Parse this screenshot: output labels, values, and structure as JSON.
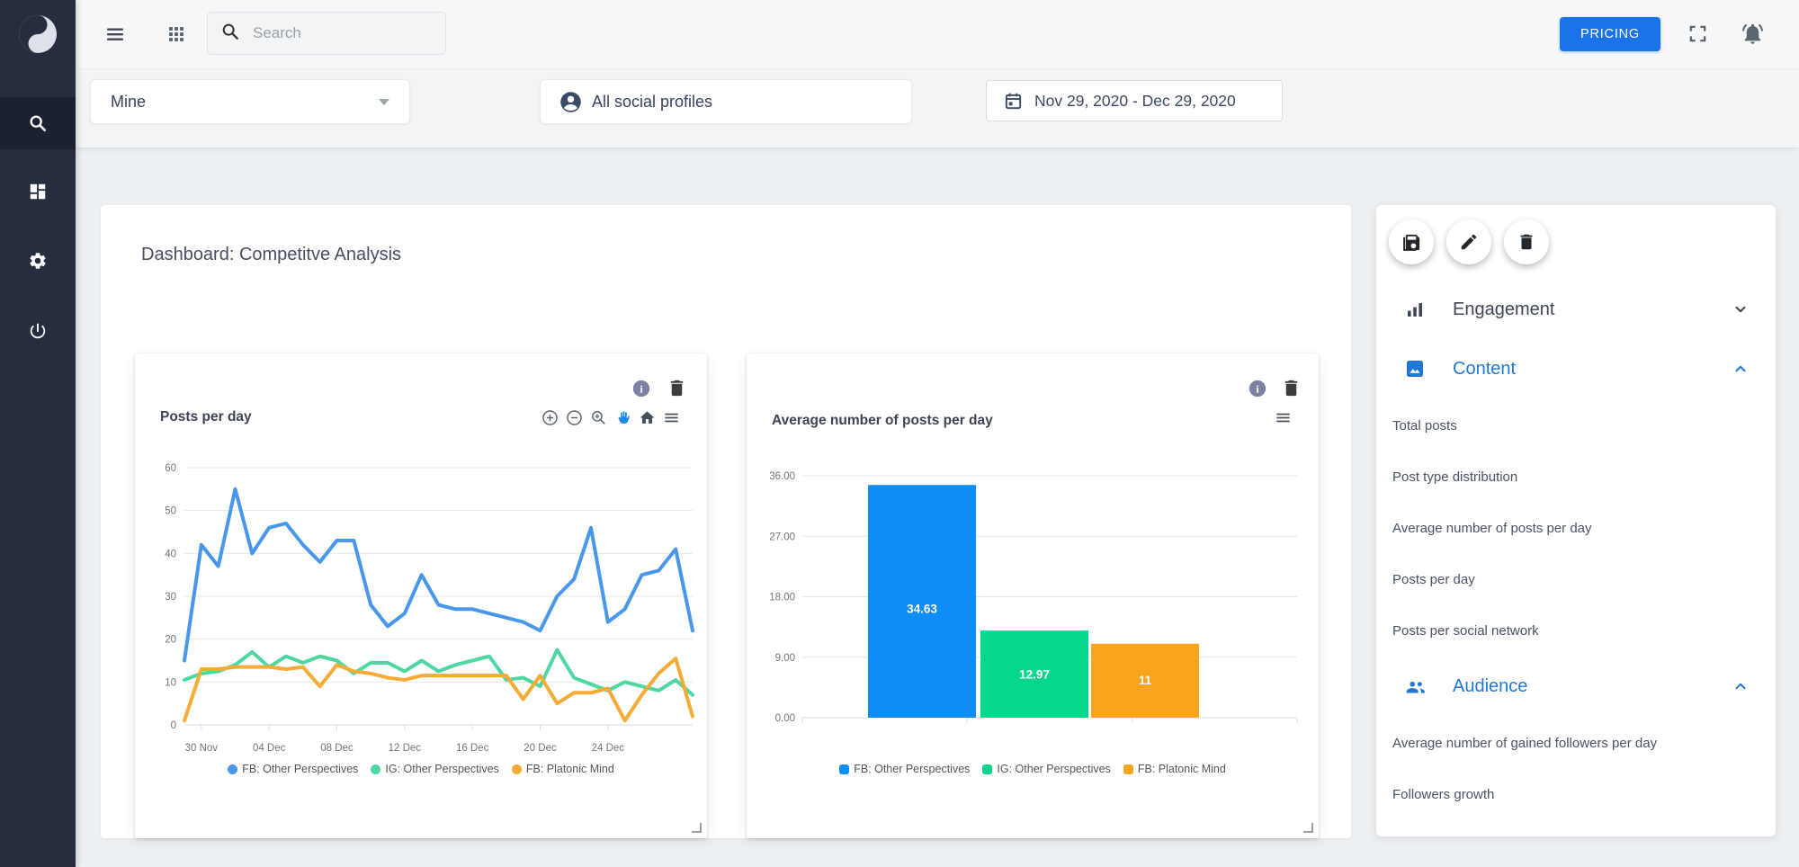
{
  "colors": {
    "accent_blue": "#1a73e8",
    "panel_link_blue": "#2078d4",
    "sidebar_bg": "#262d3e",
    "page_bg": "#edf0f3"
  },
  "sidebar": {
    "logo_icon": "yin-yang-logo",
    "nav_icons": [
      "search",
      "dashboard",
      "settings",
      "power"
    ],
    "active_item": "search"
  },
  "topbar": {
    "menu_icon": "hamburger",
    "apps_icon": "grid-dots",
    "search": {
      "placeholder": "Search"
    },
    "pricing_button_label": "PRICING",
    "fullscreen_icon": "fullscreen-brackets",
    "notifications_icon": "bell"
  },
  "filters": {
    "ownership": {
      "value": "Mine"
    },
    "profiles": {
      "value": "All social profiles",
      "icon": "account-circle"
    },
    "date_range": {
      "value": "Nov 29, 2020 - Dec 29, 2020",
      "icon": "calendar"
    }
  },
  "dashboard": {
    "title": "Dashboard: Competitve Analysis"
  },
  "charts": [
    {
      "title": "Posts per day",
      "header_icons": [
        "info",
        "delete"
      ],
      "toolbar_icons": [
        "zoom-in",
        "zoom-out",
        "selection-zoom",
        "pan-hand",
        "home",
        "menu"
      ],
      "chart_data": {
        "type": "line",
        "title": "Posts per day",
        "x_labels": [
          "30 Nov",
          "04 Dec",
          "08 Dec",
          "12 Dec",
          "16 Dec",
          "20 Dec",
          "24 Dec"
        ],
        "label_indices": [
          1,
          5,
          9,
          13,
          17,
          21,
          25
        ],
        "ylim": [
          0,
          60
        ],
        "yticks": [
          0,
          10,
          20,
          30,
          40,
          50,
          60
        ],
        "grid": true,
        "legend_position": "bottom",
        "series": [
          {
            "name": "FB: Other Perspectives",
            "color": "#4897EC",
            "values": [
              15,
              42,
              37,
              55,
              40,
              46,
              47,
              42,
              38,
              43,
              43,
              28,
              23,
              26,
              35,
              28,
              27,
              27,
              26,
              25,
              24,
              22,
              30,
              34,
              46,
              24,
              27,
              35,
              36,
              41,
              22
            ]
          },
          {
            "name": "IG: Other Perspectives",
            "color": "#4FD7A2",
            "values": [
              10.5,
              12,
              12.5,
              14,
              17,
              13.5,
              16,
              14.5,
              16,
              15,
              12,
              14.5,
              14.5,
              12.5,
              15,
              12.5,
              14,
              15,
              16,
              10.5,
              11,
              9,
              17.5,
              11,
              9.5,
              8,
              10,
              9,
              8,
              10.5,
              7
            ]
          },
          {
            "name": "FB: Platonic Mind",
            "color": "#F5AB35",
            "values": [
              1,
              13,
              13,
              13.5,
              13.5,
              13.5,
              13,
              13.5,
              9,
              14,
              12.5,
              12,
              11,
              10.5,
              11.5,
              11.5,
              11.5,
              11.5,
              11.5,
              11.5,
              6,
              11.5,
              5,
              7.5,
              7.5,
              8.5,
              1,
              7,
              12,
              15.5,
              2
            ]
          }
        ]
      }
    },
    {
      "title": "Average number of posts per day",
      "header_icons": [
        "info",
        "delete"
      ],
      "toolbar_icons": [
        "menu"
      ],
      "chart_data": {
        "type": "bar",
        "title": "Average number of posts per day",
        "categories": [
          "FB: Other Perspectives",
          "IG: Other Perspectives",
          "FB: Platonic Mind"
        ],
        "values": [
          34.63,
          12.97,
          11
        ],
        "display_values": [
          "34.63",
          "12.97",
          "11"
        ],
        "colors": [
          "#0E8DF9",
          "#06D78C",
          "#F8A41D"
        ],
        "ylim": [
          0,
          36
        ],
        "yticks": [
          0,
          9,
          18,
          27,
          36
        ],
        "ytick_labels": [
          "0.00",
          "9.00",
          "18.00",
          "27.00",
          "36.00"
        ],
        "grid": true,
        "legend_position": "bottom"
      }
    }
  ],
  "right_panel": {
    "action_icons": [
      "save",
      "edit",
      "delete"
    ],
    "sections": [
      {
        "label": "Engagement",
        "icon": "bar-chart",
        "expanded": false,
        "items": []
      },
      {
        "label": "Content",
        "icon": "image",
        "expanded": true,
        "items": [
          "Total posts",
          "Post type distribution",
          "Average number of posts per day",
          "Posts per day",
          "Posts per social network"
        ]
      },
      {
        "label": "Audience",
        "icon": "people",
        "expanded": true,
        "items": [
          "Average number of gained followers per day",
          "Followers growth"
        ]
      }
    ]
  }
}
